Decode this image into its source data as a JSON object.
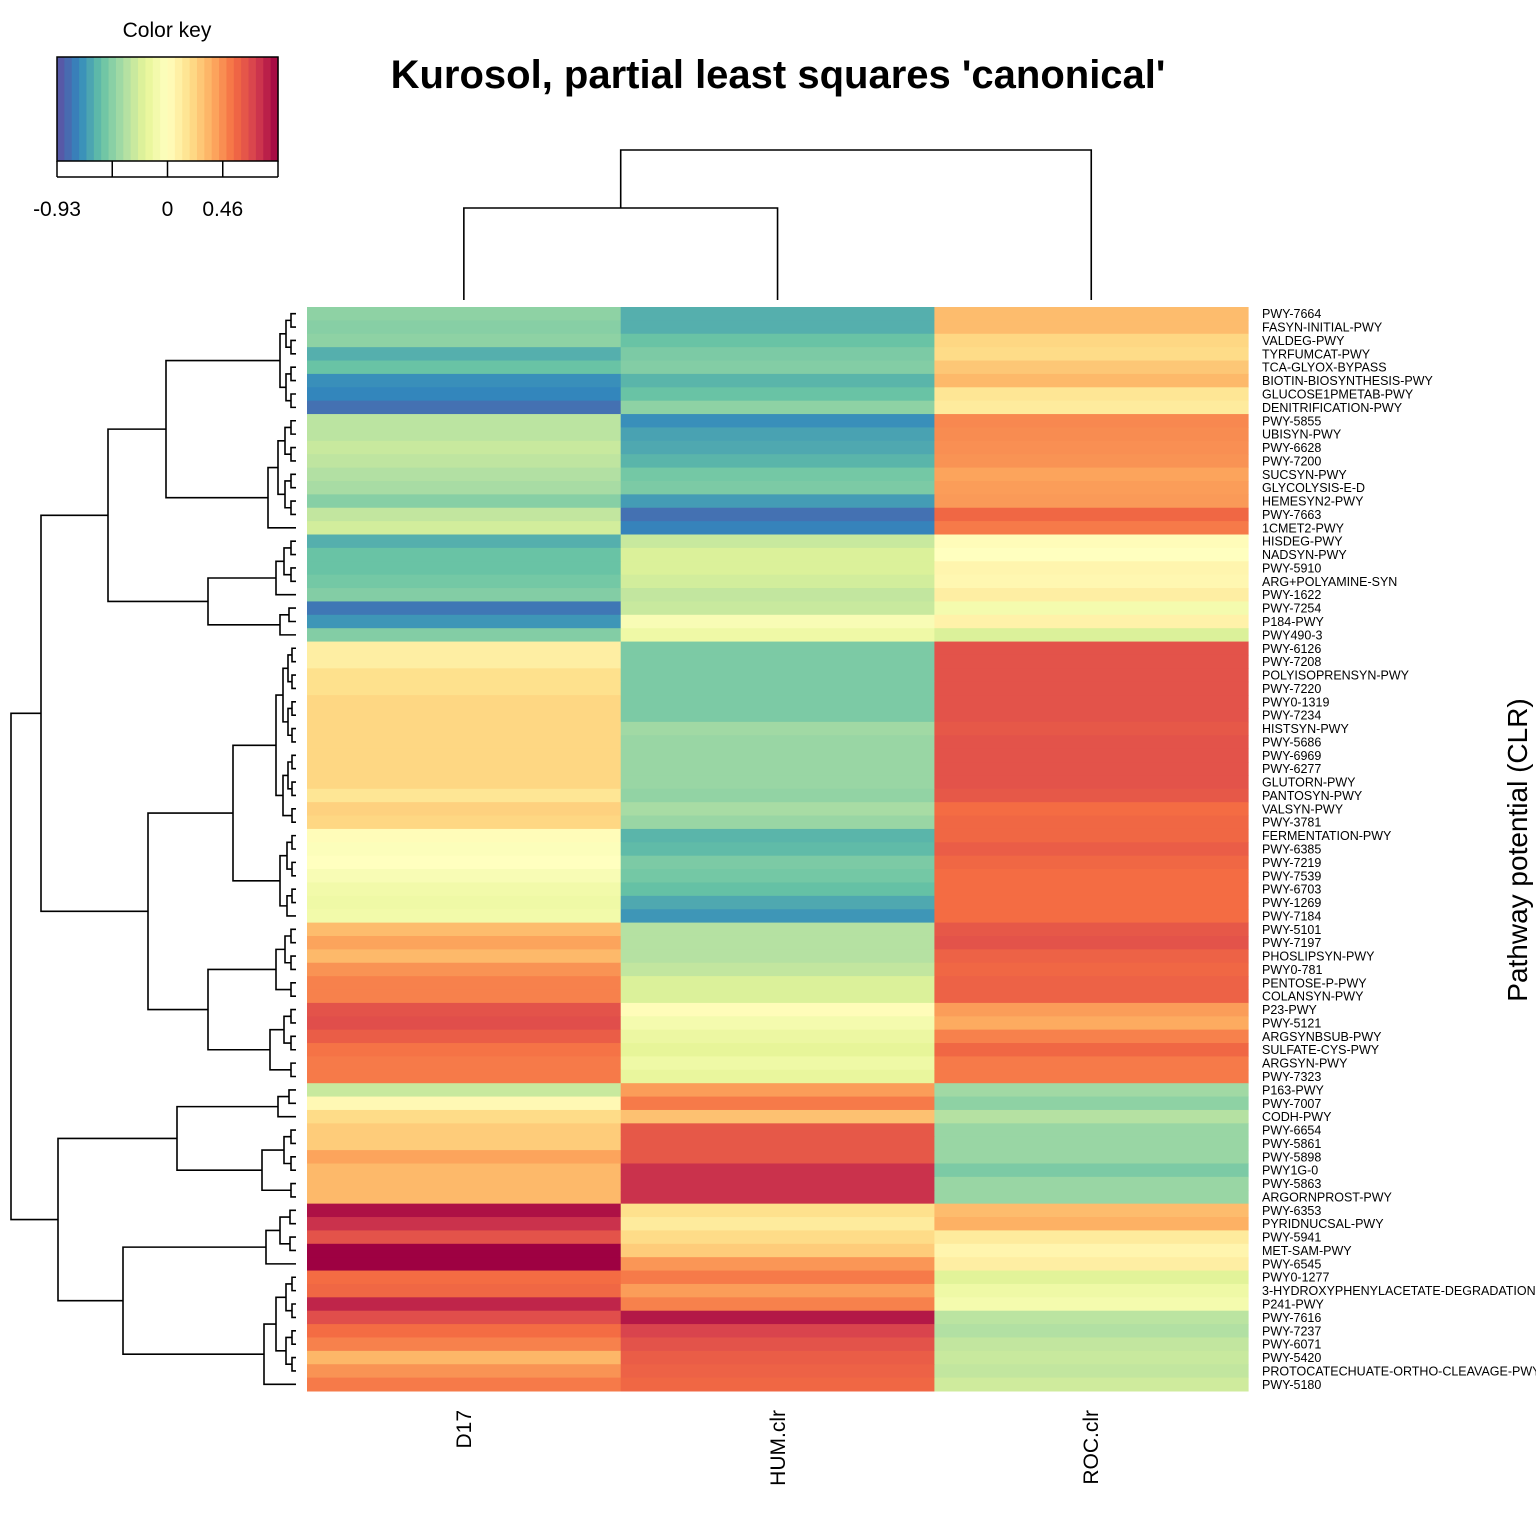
{
  "chart_data": {
    "type": "heatmap",
    "title": "Kurosol, partial least squares 'canonical'",
    "ylabel": "Pathway potential (CLR)",
    "columns": [
      "D17",
      "HUM.clr",
      "ROC.clr"
    ],
    "color_key": {
      "title": "Color key",
      "min": -0.93,
      "max": 0.93,
      "tick_labels": [
        "-0.93",
        "0",
        "0.46"
      ],
      "palette": [
        "#5e4fa2",
        "#3288bd",
        "#66c2a5",
        "#abdda4",
        "#e6f598",
        "#ffffbf",
        "#fee08b",
        "#fdae61",
        "#f46d43",
        "#d53e4f",
        "#9e0142"
      ]
    },
    "row_labels": [
      "PWY-7664",
      "FASYN-INITIAL-PWY",
      "VALDEG-PWY",
      "TYRFUMCAT-PWY",
      "TCA-GLYOX-BYPASS",
      "BIOTIN-BIOSYNTHESIS-PWY",
      "GLUCOSE1PMETAB-PWY",
      "DENITRIFICATION-PWY",
      "PWY-5855",
      "UBISYN-PWY",
      "PWY-6628",
      "PWY-7200",
      "SUCSYN-PWY",
      "GLYCOLYSIS-E-D",
      "HEMESYN2-PWY",
      "PWY-7663",
      "1CMET2-PWY",
      "HISDEG-PWY",
      "NADSYN-PWY",
      "PWY-5910",
      "ARG+POLYAMINE-SYN",
      "PWY-1622",
      "PWY-7254",
      "P184-PWY",
      "PWY490-3",
      "PWY-6126",
      "PWY-7208",
      "POLYISOPRENSYN-PWY",
      "PWY-7220",
      "PWY0-1319",
      "PWY-7234",
      "HISTSYN-PWY",
      "PWY-5686",
      "PWY-6969",
      "PWY-6277",
      "GLUTORN-PWY",
      "PANTOSYN-PWY",
      "VALSYN-PWY",
      "PWY-3781",
      "FERMENTATION-PWY",
      "PWY-6385",
      "PWY-7219",
      "PWY-7539",
      "PWY-6703",
      "PWY-1269",
      "PWY-7184",
      "PWY-5101",
      "PWY-7197",
      "PHOSLIPSYN-PWY",
      "PWY0-781",
      "PENTOSE-P-PWY",
      "COLANSYN-PWY",
      "P23-PWY",
      "PWY-5121",
      "ARGSYNBSUB-PWY",
      "SULFATE-CYS-PWY",
      "ARGSYN-PWY",
      "PWY-7323",
      "P163-PWY",
      "PWY-7007",
      "CODH-PWY",
      "PWY-6654",
      "PWY-5861",
      "PWY-5898",
      "PWY1G-0",
      "PWY-5863",
      "ARGORNPROST-PWY",
      "PWY-6353",
      "PYRIDNUCSAL-PWY",
      "PWY-5941",
      "MET-SAM-PWY",
      "PWY-6545",
      "PWY0-1277",
      "3-HYDROXYPHENYLACETATE-DEGRADATION",
      "P241-PWY",
      "PWY-7616",
      "PWY-7237",
      "PWY-6071",
      "PWY-5420",
      "PROTOCATECHUATE-ORTHO-CLEAVAGE-PWY",
      "PWY-5180"
    ],
    "values": [
      [
        -0.45,
        -0.62,
        0.32
      ],
      [
        -0.47,
        -0.62,
        0.32
      ],
      [
        -0.45,
        -0.55,
        0.22
      ],
      [
        -0.62,
        -0.5,
        0.2
      ],
      [
        -0.55,
        -0.48,
        0.28
      ],
      [
        -0.72,
        -0.6,
        0.33
      ],
      [
        -0.75,
        -0.55,
        0.15
      ],
      [
        -0.82,
        -0.45,
        0.12
      ],
      [
        -0.32,
        -0.72,
        0.48
      ],
      [
        -0.32,
        -0.66,
        0.47
      ],
      [
        -0.28,
        -0.64,
        0.46
      ],
      [
        -0.31,
        -0.6,
        0.45
      ],
      [
        -0.35,
        -0.52,
        0.4
      ],
      [
        -0.38,
        -0.5,
        0.42
      ],
      [
        -0.47,
        -0.68,
        0.43
      ],
      [
        -0.3,
        -0.82,
        0.58
      ],
      [
        -0.25,
        -0.76,
        0.52
      ],
      [
        -0.62,
        -0.28,
        0.02
      ],
      [
        -0.55,
        -0.22,
        0.0
      ],
      [
        -0.55,
        -0.22,
        0.06
      ],
      [
        -0.52,
        -0.25,
        0.05
      ],
      [
        -0.48,
        -0.3,
        0.1
      ],
      [
        -0.8,
        -0.28,
        -0.08
      ],
      [
        -0.7,
        -0.05,
        0.08
      ],
      [
        -0.48,
        -0.12,
        -0.22
      ],
      [
        0.1,
        -0.5,
        0.66
      ],
      [
        0.1,
        -0.5,
        0.66
      ],
      [
        0.18,
        -0.5,
        0.66
      ],
      [
        0.18,
        -0.5,
        0.66
      ],
      [
        0.22,
        -0.5,
        0.66
      ],
      [
        0.22,
        -0.5,
        0.66
      ],
      [
        0.22,
        -0.4,
        0.64
      ],
      [
        0.22,
        -0.42,
        0.66
      ],
      [
        0.22,
        -0.42,
        0.66
      ],
      [
        0.22,
        -0.42,
        0.66
      ],
      [
        0.22,
        -0.42,
        0.66
      ],
      [
        0.15,
        -0.44,
        0.64
      ],
      [
        0.24,
        -0.38,
        0.56
      ],
      [
        0.22,
        -0.42,
        0.58
      ],
      [
        0.02,
        -0.6,
        0.58
      ],
      [
        -0.02,
        -0.58,
        0.62
      ],
      [
        0.0,
        -0.5,
        0.58
      ],
      [
        -0.05,
        -0.52,
        0.56
      ],
      [
        -0.1,
        -0.56,
        0.56
      ],
      [
        -0.12,
        -0.64,
        0.56
      ],
      [
        -0.1,
        -0.7,
        0.56
      ],
      [
        0.32,
        -0.34,
        0.64
      ],
      [
        0.4,
        -0.34,
        0.66
      ],
      [
        0.33,
        -0.34,
        0.6
      ],
      [
        0.45,
        -0.3,
        0.58
      ],
      [
        0.5,
        -0.22,
        0.6
      ],
      [
        0.5,
        -0.22,
        0.6
      ],
      [
        0.66,
        0.02,
        0.42
      ],
      [
        0.68,
        -0.08,
        0.38
      ],
      [
        0.62,
        -0.14,
        0.5
      ],
      [
        0.54,
        -0.18,
        0.58
      ],
      [
        0.52,
        -0.12,
        0.52
      ],
      [
        0.52,
        -0.16,
        0.52
      ],
      [
        -0.28,
        0.42,
        -0.4
      ],
      [
        0.04,
        0.52,
        -0.45
      ],
      [
        0.2,
        0.3,
        -0.34
      ],
      [
        0.26,
        0.64,
        -0.42
      ],
      [
        0.26,
        0.64,
        -0.42
      ],
      [
        0.4,
        0.64,
        -0.42
      ],
      [
        0.33,
        0.78,
        -0.5
      ],
      [
        0.33,
        0.78,
        -0.42
      ],
      [
        0.33,
        0.78,
        -0.42
      ],
      [
        0.88,
        0.18,
        0.32
      ],
      [
        0.78,
        0.12,
        0.36
      ],
      [
        0.66,
        0.2,
        0.12
      ],
      [
        0.96,
        0.26,
        0.06
      ],
      [
        0.96,
        0.44,
        0.1
      ],
      [
        0.56,
        0.52,
        -0.2
      ],
      [
        0.58,
        0.42,
        -0.12
      ],
      [
        0.82,
        0.5,
        -0.08
      ],
      [
        0.68,
        0.86,
        -0.32
      ],
      [
        0.56,
        0.72,
        -0.35
      ],
      [
        0.5,
        0.66,
        -0.3
      ],
      [
        0.34,
        0.62,
        -0.28
      ],
      [
        0.45,
        0.6,
        -0.3
      ],
      [
        0.52,
        0.58,
        -0.26
      ]
    ]
  }
}
